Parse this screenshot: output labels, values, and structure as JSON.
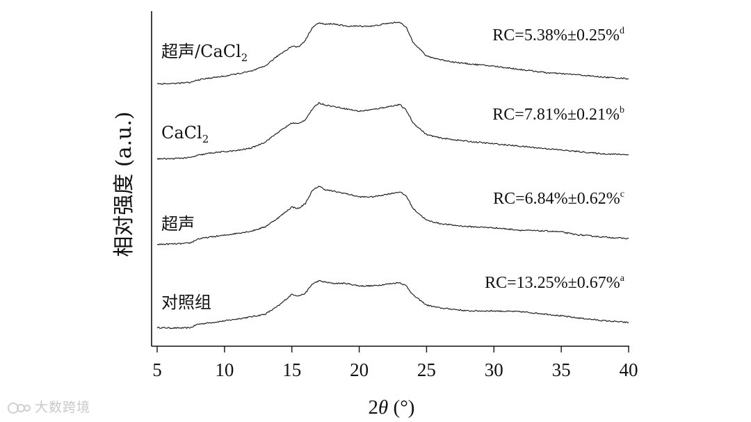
{
  "chart_data": {
    "type": "line",
    "xlabel": "2θ (°)",
    "xlabel_prefix": "2",
    "xlabel_theta": "θ",
    "xlabel_suffix": " (°)",
    "ylabel": "相对强度 (a.u.)",
    "xlim": [
      5,
      40
    ],
    "x_ticks": [
      5,
      10,
      15,
      20,
      25,
      30,
      35,
      40
    ],
    "yticks_shown": false,
    "stacked_offsets": true,
    "series": [
      {
        "name": "对照组",
        "label_main": "对照组",
        "label_sub": "",
        "rc_text": "RC=13.25%±0.67%",
        "rc_sup": "a",
        "offset": 0,
        "x": [
          5,
          6,
          7,
          7.5,
          8,
          9,
          10,
          11,
          12,
          13,
          14,
          15,
          15.5,
          16,
          16.5,
          17,
          17.5,
          18,
          19,
          20,
          21,
          22,
          23,
          23.5,
          24,
          25,
          26,
          27,
          28,
          30,
          32,
          34,
          36,
          38,
          40
        ],
        "y": [
          8,
          7,
          7,
          8,
          16,
          20,
          24,
          29,
          34,
          40,
          60,
          88,
          84,
          90,
          112,
          120,
          117,
          114,
          114,
          108,
          108,
          112,
          116,
          108,
          86,
          62,
          55,
          52,
          48,
          48,
          46,
          40,
          32,
          25,
          20
        ]
      },
      {
        "name": "超声",
        "label_main": "超声",
        "label_sub": "",
        "rc_text": "RC=6.84%±0.62%",
        "rc_sup": "c",
        "offset": 1,
        "x": [
          5,
          6,
          7,
          7.5,
          8,
          9,
          10,
          11,
          12,
          13,
          14,
          15,
          15.5,
          16,
          16.5,
          17,
          17.5,
          18,
          19,
          20,
          21,
          22,
          23,
          23.5,
          24,
          25,
          26,
          27,
          28,
          30,
          32,
          34,
          35,
          36,
          38,
          40
        ],
        "y": [
          4,
          5,
          6,
          8,
          17,
          22,
          26,
          31,
          36,
          46,
          68,
          94,
          90,
          102,
          132,
          144,
          135,
          132,
          126,
          118,
          118,
          124,
          130,
          120,
          90,
          62,
          54,
          50,
          47,
          44,
          38,
          36,
          34,
          28,
          22,
          18
        ]
      },
      {
        "name": "CaCl2",
        "label_main": "CaCl",
        "label_sub": "2",
        "rc_text": "RC=7.81%±0.21%",
        "rc_sup": "b",
        "offset": 2,
        "x": [
          5,
          6,
          7,
          7.5,
          8,
          9,
          10,
          11,
          12,
          13,
          14,
          15,
          15.5,
          16,
          16.5,
          17,
          17.5,
          18,
          19,
          20,
          21,
          22,
          23,
          23.5,
          24,
          25,
          26,
          27,
          28,
          30,
          32,
          34,
          36,
          38,
          40
        ],
        "y": [
          6,
          6,
          8,
          9,
          14,
          20,
          23,
          26,
          32,
          46,
          70,
          92,
          90,
          100,
          124,
          140,
          135,
          132,
          126,
          120,
          124,
          130,
          136,
          122,
          92,
          64,
          56,
          52,
          48,
          42,
          36,
          30,
          24,
          18,
          16
        ]
      },
      {
        "name": "超声/CaCl2",
        "label_main": "超声/CaCl",
        "label_sub": "2",
        "rc_text": "RC=5.38%±0.25%",
        "rc_sup": "d",
        "offset": 3,
        "x": [
          5,
          6,
          7,
          7.5,
          8,
          9,
          10,
          11,
          12,
          13,
          14,
          15,
          15.5,
          16,
          16.5,
          17,
          17.5,
          18,
          19,
          20,
          21,
          22,
          23,
          23.5,
          24,
          25,
          26,
          27,
          28,
          30,
          32,
          34,
          36,
          38,
          40
        ],
        "y": [
          6,
          6,
          8,
          9,
          15,
          20,
          24,
          30,
          36,
          48,
          74,
          96,
          94,
          110,
          140,
          152,
          148,
          150,
          144,
          144,
          144,
          150,
          154,
          140,
          106,
          72,
          64,
          58,
          54,
          48,
          40,
          32,
          28,
          22,
          18
        ]
      }
    ]
  },
  "watermark": {
    "text": "大数跨境",
    "icon": "gear-logo-icon"
  }
}
